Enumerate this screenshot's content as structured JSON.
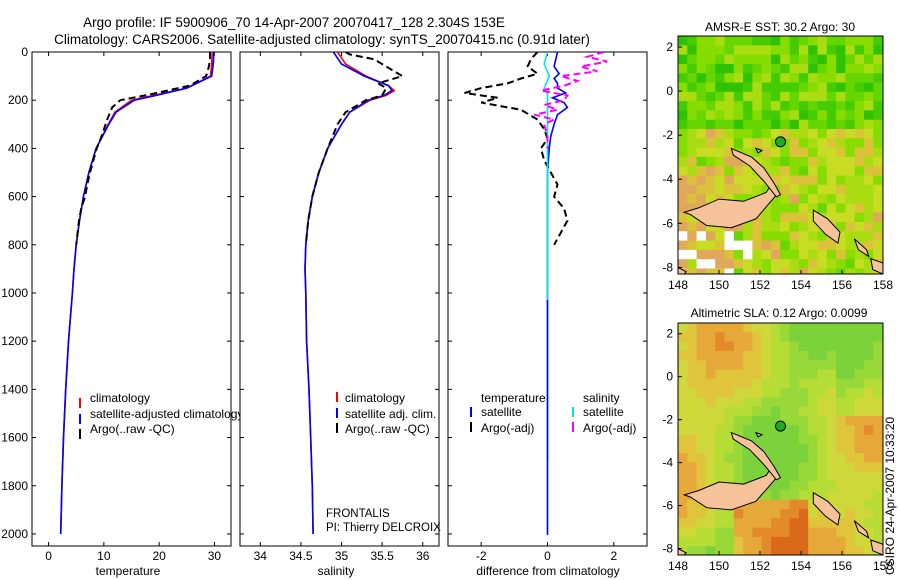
{
  "header": {
    "title_line1": "Argo profile: IF 5900906_70 14-Apr-2007 20070417_128 2.304S 153E",
    "title_line2": "Climatology: CARS2006. Satellite-adjusted climatology: synTS_20070415.nc (0.91d later)"
  },
  "footer": {
    "credit": "CSIRO 24-Apr-2007 10:33:20",
    "platform": "FRONTALIS",
    "pi": "PI: Thierry DELCROIX"
  },
  "colors": {
    "climatology": "#ff0000",
    "satellite": "#0000ff",
    "argo": "#000000",
    "salinity_satellite": "#00e5ee",
    "salinity_argo": "#ff00ff",
    "island": "#f5c29a"
  },
  "chart_data": [
    {
      "type": "line",
      "id": "temperature",
      "xlabel": "temperature",
      "ylabel": "",
      "xlim": [
        -3,
        33
      ],
      "ylim": [
        2050,
        0
      ],
      "xticks": [
        0,
        10,
        20,
        30
      ],
      "yticks": [
        0,
        200,
        400,
        600,
        800,
        1000,
        1200,
        1400,
        1600,
        1800,
        2000
      ],
      "legend": [
        "climatology",
        "satellite-adjusted climatology",
        "Argo(..raw -QC)"
      ],
      "series": [
        {
          "name": "climatology",
          "color": "#ff0000",
          "dash": "",
          "depth": [
            0,
            50,
            100,
            150,
            180,
            200,
            250,
            300,
            400,
            500,
            600,
            700,
            800,
            900,
            1000,
            1200,
            1400,
            1600,
            1800,
            2000
          ],
          "values": [
            29.6,
            29.5,
            29.3,
            25,
            19,
            15,
            12,
            10.8,
            8.6,
            7.3,
            6.3,
            5.6,
            5,
            4.6,
            4.3,
            3.6,
            3.1,
            2.7,
            2.4,
            2.2
          ]
        },
        {
          "name": "satellite-adjusted climatology",
          "color": "#0000ff",
          "dash": "",
          "depth": [
            0,
            50,
            100,
            150,
            180,
            200,
            250,
            300,
            400,
            500,
            600,
            700,
            800,
            900,
            1000,
            1200,
            1400,
            1600,
            1800,
            2000
          ],
          "values": [
            29.9,
            29.8,
            29.5,
            25,
            19.5,
            15.5,
            12.2,
            10.9,
            8.6,
            7.3,
            6.3,
            5.6,
            5,
            4.6,
            4.3,
            3.6,
            3.1,
            2.7,
            2.4,
            2.2
          ]
        },
        {
          "name": "Argo(..raw -QC)",
          "color": "#000000",
          "dash": "7,4",
          "depth": [
            0,
            30,
            60,
            100,
            140,
            160,
            180,
            200,
            230,
            280,
            350,
            400,
            500,
            550,
            600,
            650,
            700,
            800
          ],
          "values": [
            29.2,
            29.2,
            29.0,
            28.5,
            25.5,
            21.5,
            17.5,
            13,
            11.5,
            10.6,
            9.6,
            8.7,
            7.5,
            7.0,
            6.6,
            5.9,
            5.5,
            5.0
          ]
        }
      ]
    },
    {
      "type": "line",
      "id": "salinity",
      "xlabel": "salinity",
      "ylabel": "",
      "xlim": [
        33.75,
        36.2
      ],
      "ylim": [
        2050,
        0
      ],
      "xticks": [
        34,
        34.5,
        35,
        35.5,
        36
      ],
      "legend": [
        "climatology",
        "satellite adj. clim.",
        "Argo(..raw -QC)"
      ],
      "series": [
        {
          "name": "climatology",
          "color": "#ff0000",
          "dash": "",
          "depth": [
            0,
            50,
            100,
            140,
            160,
            180,
            200,
            250,
            300,
            400,
            500,
            600,
            700,
            800,
            900,
            1000,
            1200,
            1400,
            1600,
            1800,
            2000
          ],
          "values": [
            34.95,
            35.05,
            35.3,
            35.58,
            35.65,
            35.55,
            35.35,
            35.1,
            35.0,
            34.83,
            34.72,
            34.64,
            34.59,
            34.56,
            34.55,
            34.56,
            34.57,
            34.6,
            34.62,
            34.64,
            34.65
          ]
        },
        {
          "name": "satellite adj. clim.",
          "color": "#0000ff",
          "dash": "",
          "depth": [
            0,
            50,
            100,
            140,
            160,
            180,
            200,
            250,
            300,
            400,
            500,
            600,
            700,
            800,
            900,
            1000,
            1200,
            1400,
            1600,
            1800,
            2000
          ],
          "values": [
            34.9,
            35.0,
            35.28,
            35.58,
            35.62,
            35.52,
            35.33,
            35.1,
            35.0,
            34.83,
            34.72,
            34.64,
            34.59,
            34.56,
            34.55,
            34.56,
            34.57,
            34.6,
            34.62,
            34.64,
            34.65
          ]
        },
        {
          "name": "Argo(..raw -QC)",
          "color": "#000000",
          "dash": "7,4",
          "depth": [
            0,
            10,
            30,
            60,
            100,
            130,
            150,
            180,
            200,
            250,
            300,
            400,
            500,
            600,
            700,
            800
          ],
          "values": [
            35.05,
            35.1,
            35.4,
            35.55,
            35.75,
            35.45,
            35.55,
            35.5,
            35.3,
            35.05,
            34.95,
            34.83,
            34.72,
            34.64,
            34.59,
            34.56
          ]
        }
      ]
    },
    {
      "type": "line",
      "id": "difference",
      "xlabel": "difference from climatology",
      "ylabel": "",
      "xlim": [
        -3,
        3
      ],
      "ylim": [
        2050,
        0
      ],
      "xticks": [
        -2,
        0,
        2
      ],
      "legend_groups": [
        {
          "title": "temperature",
          "entries": [
            "satellite",
            "Argo(-adj)"
          ]
        },
        {
          "title": "salinity",
          "entries": [
            "satellite",
            "Argo(-adj)"
          ]
        }
      ],
      "series": [
        {
          "name": "temperature satellite",
          "color": "#0000ff",
          "dash": "",
          "depth": [
            0,
            30,
            60,
            90,
            110,
            130,
            150,
            170,
            190,
            210,
            230,
            260,
            300,
            350,
            400,
            500,
            700,
            1000,
            1500,
            1700
          ],
          "values": [
            0.3,
            0.25,
            0.2,
            0.35,
            0.2,
            0.3,
            0.3,
            0.55,
            0.15,
            0.5,
            0.6,
            0.3,
            0.2,
            0.1,
            0.05,
            0.0,
            0.0,
            0.0,
            0.0,
            0.0
          ]
        },
        {
          "name": "temperature Argo(-adj)",
          "color": "#000000",
          "dash": "7,4",
          "depth": [
            0,
            30,
            60,
            90,
            110,
            130,
            150,
            170,
            190,
            210,
            240,
            280,
            320,
            360,
            400,
            450,
            500,
            550,
            600,
            650,
            700,
            750,
            800
          ],
          "values": [
            -0.3,
            -0.5,
            -0.6,
            -0.3,
            -0.8,
            -1.2,
            -2.0,
            -2.5,
            -1.5,
            -2.0,
            -0.8,
            -0.3,
            -0.1,
            0.0,
            -0.2,
            -0.1,
            0.1,
            0.3,
            0.2,
            0.5,
            0.6,
            0.4,
            0.2
          ]
        },
        {
          "name": "salinity satellite",
          "color": "#00e5ee",
          "dash": "",
          "depth": [
            0,
            50,
            100,
            150,
            170,
            200,
            300,
            500,
            1000,
            1500,
            2000
          ],
          "values": [
            0.0,
            -0.1,
            0.05,
            -0.1,
            0.0,
            0.0,
            0.0,
            0.0,
            0.0,
            0.0,
            0.0
          ]
        },
        {
          "name": "salinity Argo(-adj)",
          "color": "#ff00ff",
          "dash": "7,4",
          "depth": [
            0,
            20,
            40,
            60,
            80,
            100,
            120,
            140,
            160,
            180,
            200,
            220,
            240,
            260,
            280,
            300,
            350,
            400
          ],
          "values": [
            1.7,
            1.2,
            1.8,
            1.0,
            1.5,
            0.4,
            0.9,
            0.5,
            -0.2,
            0.6,
            0.5,
            -0.1,
            0.3,
            -0.4,
            0.2,
            -0.1,
            0.0,
            0.0
          ]
        }
      ]
    },
    {
      "type": "heatmap",
      "id": "sst_map",
      "title": "AMSR-E SST: 30.2 Argo: 30",
      "xlim": [
        148,
        158
      ],
      "ylim": [
        -8.3,
        2.5
      ],
      "xticks": [
        148,
        150,
        152,
        154,
        156,
        158
      ],
      "yticks": [
        2,
        0,
        -2,
        -4,
        -6,
        -8
      ],
      "argo_position": {
        "lon": 153,
        "lat": -2.3
      }
    },
    {
      "type": "heatmap",
      "id": "sla_map",
      "title": "Altimetric SLA: 0.12 Argo: 0.0099",
      "xlim": [
        148,
        158
      ],
      "ylim": [
        -8.3,
        2.5
      ],
      "xticks": [
        148,
        150,
        152,
        154,
        156,
        158
      ],
      "yticks": [
        2,
        0,
        -2,
        -4,
        -6,
        -8
      ],
      "argo_position": {
        "lon": 153,
        "lat": -2.3
      }
    }
  ]
}
